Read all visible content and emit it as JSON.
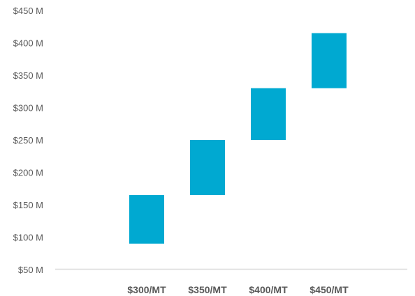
{
  "chart_data": {
    "type": "bar",
    "subtype": "floating",
    "categories": [
      "$300/MT",
      "$350/MT",
      "$400/MT",
      "$450/MT"
    ],
    "series": [
      {
        "ranges": [
          [
            90,
            165
          ],
          [
            165,
            250
          ],
          [
            250,
            330
          ],
          [
            330,
            415
          ]
        ],
        "color": "#00A9D1"
      }
    ],
    "yticks": [
      50,
      100,
      150,
      200,
      250,
      300,
      350,
      400,
      450
    ],
    "ytick_labels": [
      "$50 M",
      "$100 M",
      "$150 M",
      "$200 M",
      "$250 M",
      "$300 M",
      "$350 M",
      "$400 M",
      "$450 M"
    ],
    "ylim": [
      50,
      450
    ],
    "grid": false,
    "legend": "none",
    "title": "",
    "xlabel": "",
    "ylabel": "",
    "axis_color": "#D9D9D9",
    "label_color": "#595959"
  }
}
